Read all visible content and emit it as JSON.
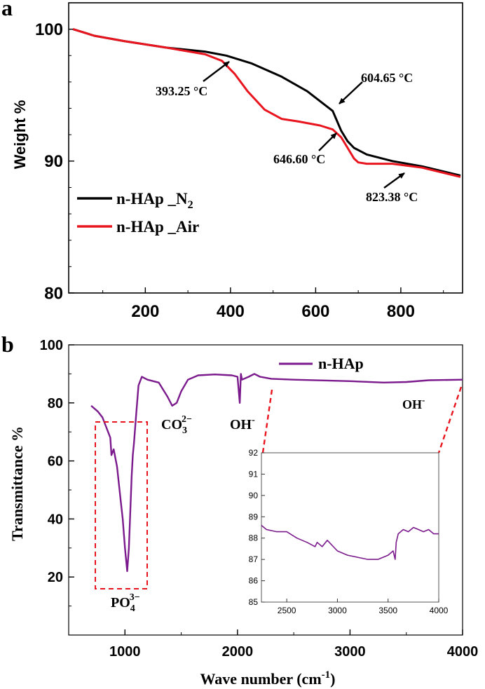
{
  "chart_data": [
    {
      "panel": "a",
      "type": "line",
      "xlabel": "",
      "ylabel": "Weight %",
      "xlim": [
        20,
        945
      ],
      "ylim": [
        80,
        102
      ],
      "xticks": [
        200,
        400,
        600,
        800
      ],
      "yticks": [
        80,
        90,
        100
      ],
      "grid": false,
      "legend_position": "middle-left",
      "series": [
        {
          "name": "n-HAp _N2",
          "color": "#000000",
          "x": [
            30,
            80,
            150,
            250,
            340,
            390,
            450,
            520,
            580,
            640,
            660,
            675,
            690,
            720,
            780,
            850,
            940
          ],
          "y": [
            100.0,
            99.5,
            99.1,
            98.6,
            98.3,
            98.0,
            97.4,
            96.4,
            95.3,
            93.8,
            92.3,
            91.5,
            91.0,
            90.5,
            90.0,
            89.6,
            88.9
          ]
        },
        {
          "name": "n-HAp _Air",
          "color": "#e8141e",
          "x": [
            30,
            80,
            150,
            250,
            340,
            380,
            410,
            440,
            480,
            520,
            560,
            610,
            640,
            660,
            675,
            690,
            700,
            720,
            780,
            850,
            940
          ],
          "y": [
            100.0,
            99.5,
            99.1,
            98.6,
            98.1,
            97.6,
            96.6,
            95.3,
            93.9,
            93.2,
            93.0,
            92.7,
            92.4,
            91.8,
            91.0,
            90.2,
            89.9,
            89.8,
            89.8,
            89.5,
            88.8
          ]
        }
      ],
      "annotations": [
        "393.25 °C",
        "604.65 °C",
        "646.60 °C",
        "823.38 °C"
      ]
    },
    {
      "panel": "b",
      "type": "line",
      "xlabel": "Wave number (cm-1)",
      "ylabel": "Transmittance %",
      "xlim": [
        500,
        4000
      ],
      "ylim": [
        0,
        100
      ],
      "xticks": [
        1000,
        2000,
        3000,
        4000
      ],
      "yticks": [
        20,
        40,
        60,
        80,
        100
      ],
      "grid": false,
      "legend_position": "top-right",
      "series": [
        {
          "name": "n-HAp",
          "color": "#7b1a8c",
          "x": [
            700,
            760,
            800,
            850,
            870,
            880,
            900,
            930,
            960,
            980,
            1000,
            1020,
            1035,
            1050,
            1060,
            1070,
            1080,
            1100,
            1120,
            1150,
            1200,
            1300,
            1380,
            1420,
            1460,
            1500,
            1560,
            1650,
            1800,
            1950,
            2000,
            2020,
            2030,
            2040,
            2100,
            2150,
            2200,
            2300,
            2500,
            3000,
            3300,
            3500,
            3700,
            4000
          ],
          "y": [
            79,
            77,
            75,
            70,
            68,
            62,
            64,
            58,
            47,
            40,
            30,
            22,
            30,
            45,
            55,
            62,
            66,
            76,
            86,
            89,
            88,
            87,
            82,
            79,
            80,
            84,
            88,
            89.5,
            89.8,
            89.5,
            89,
            80,
            90,
            88,
            89,
            90,
            89,
            88.3,
            88,
            87.5,
            87,
            87.2,
            87.8,
            88
          ]
        }
      ],
      "annotations": [
        "CO3 2−",
        "OH−",
        "OH−",
        "PO4 3−"
      ],
      "inset": {
        "xlim": [
          2250,
          4000
        ],
        "ylim": [
          85,
          92
        ],
        "xticks": [
          2500,
          3000,
          3500,
          4000
        ],
        "yticks": [
          85,
          86,
          87,
          88,
          89,
          90,
          91,
          92
        ],
        "x": [
          2250,
          2300,
          2400,
          2500,
          2600,
          2700,
          2780,
          2800,
          2850,
          2900,
          3000,
          3100,
          3200,
          3300,
          3400,
          3500,
          3550,
          3570,
          3580,
          3600,
          3650,
          3700,
          3750,
          3800,
          3850,
          3900,
          3950,
          4000
        ],
        "y": [
          88.6,
          88.4,
          88.3,
          88.3,
          88.0,
          87.8,
          87.6,
          87.8,
          87.6,
          87.9,
          87.4,
          87.2,
          87.1,
          87.0,
          87.0,
          87.2,
          87.4,
          87.0,
          87.8,
          88.2,
          88.4,
          88.3,
          88.5,
          88.4,
          88.3,
          88.4,
          88.2,
          88.2
        ]
      }
    }
  ],
  "panel_labels": {
    "a": "a",
    "b": "b"
  },
  "texts": {
    "a_ylabel": "Weight  %",
    "a_ann1": "393.25 °C",
    "a_ann2": "604.65 °C",
    "a_ann3": "646.60 °C",
    "a_ann4": "823.38 °C",
    "a_legend1": "n-HAp _N",
    "a_legend1_sub": "2",
    "a_legend2": "n-HAp _Air",
    "b_ylabel": "Transmittance %",
    "b_xlabel_main": "Wave number (cm",
    "b_xlabel_sup": "-1",
    "b_xlabel_end": ")",
    "b_legend": "n-HAp",
    "co3_base": "CO",
    "co3_sub": "3",
    "co3_sup": "2−",
    "oh1_base": "OH",
    "oh_sup": "-",
    "oh2_base": "OH",
    "po4_base": "PO",
    "po4_sub": "4",
    "po4_sup": "3−"
  }
}
